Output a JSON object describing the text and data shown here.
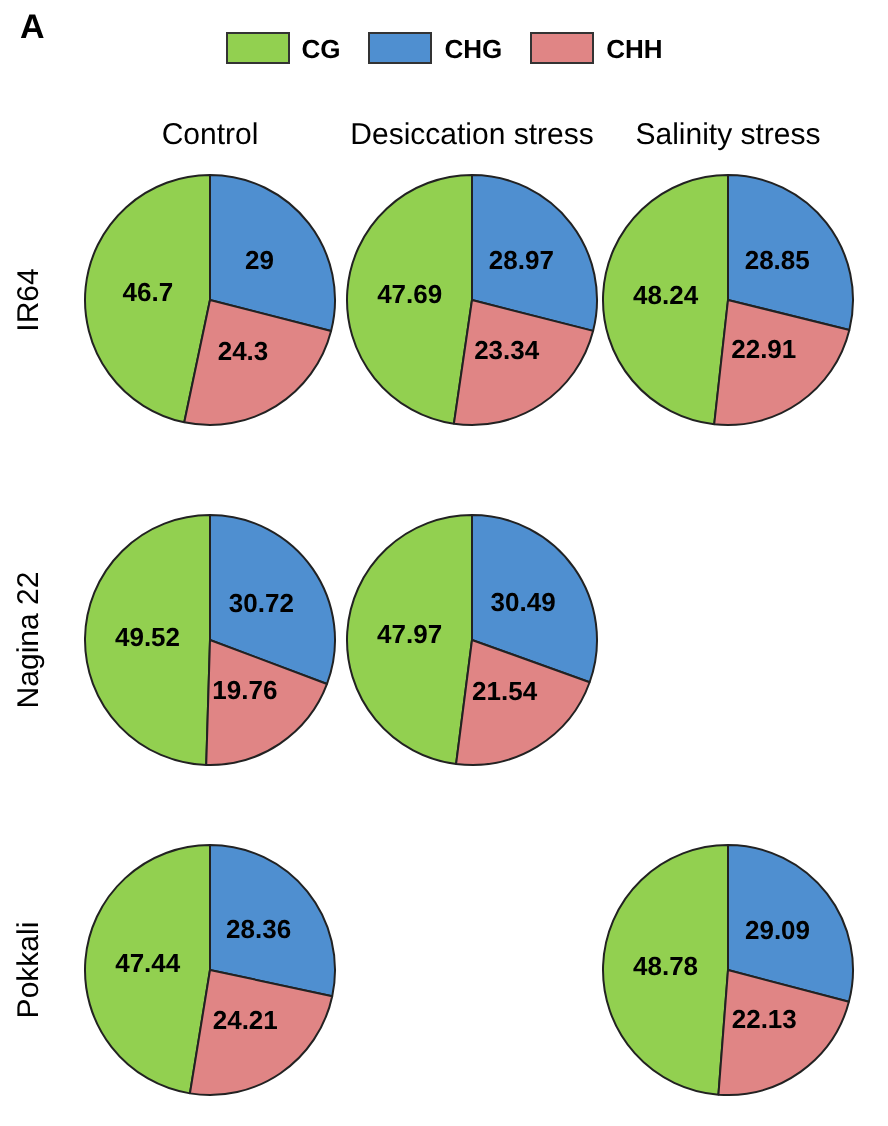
{
  "chart_data": [
    {
      "type": "pie",
      "title": "Control",
      "ylabel": "IR64",
      "annotations": [
        "A"
      ],
      "legend": "top",
      "data_labels": true,
      "categories": [
        "CG",
        "CHG",
        "CHH"
      ],
      "values": [
        46.7,
        29,
        24.3
      ],
      "colors": [
        "#92d050",
        "#4f8fd0",
        "#e08585"
      ]
    },
    {
      "type": "pie",
      "title": "Desiccation stress",
      "data_labels": true,
      "categories": [
        null,
        null,
        null
      ],
      "values": [
        47.69,
        28.97,
        23.34
      ],
      "colors": [
        "#92d050",
        "#4f8fd0",
        "#e08585"
      ]
    },
    {
      "type": "pie",
      "title": "Salinity stress",
      "data_labels": true,
      "categories": [
        null,
        null,
        null
      ],
      "values": [
        48.24,
        28.85,
        22.91
      ],
      "colors": [
        "#92d050",
        "#4f8fd0",
        "#e08585"
      ]
    },
    {
      "type": "pie",
      "ylabel": "Nagina 22",
      "data_labels": true,
      "categories": [
        null,
        null,
        null
      ],
      "values": [
        49.52,
        30.72,
        19.76
      ],
      "colors": [
        "#92d050",
        "#4f8fd0",
        "#e08585"
      ]
    },
    {
      "type": "pie",
      "data_labels": true,
      "categories": [
        null,
        null,
        null
      ],
      "values": [
        47.97,
        30.49,
        21.54
      ],
      "colors": [
        "#92d050",
        "#4f8fd0",
        "#e08585"
      ]
    },
    {
      "type": "pie",
      "ylabel": "Pokkali",
      "data_labels": true,
      "categories": [
        null,
        null,
        null
      ],
      "values": [
        47.44,
        28.36,
        24.21
      ],
      "colors": [
        "#92d050",
        "#4f8fd0",
        "#e08585"
      ]
    },
    {
      "type": "pie",
      "data_labels": true,
      "categories": [
        null,
        null,
        null
      ],
      "values": [
        48.78,
        29.09,
        22.13
      ],
      "colors": [
        "#92d050",
        "#4f8fd0",
        "#e08585"
      ]
    }
  ]
}
